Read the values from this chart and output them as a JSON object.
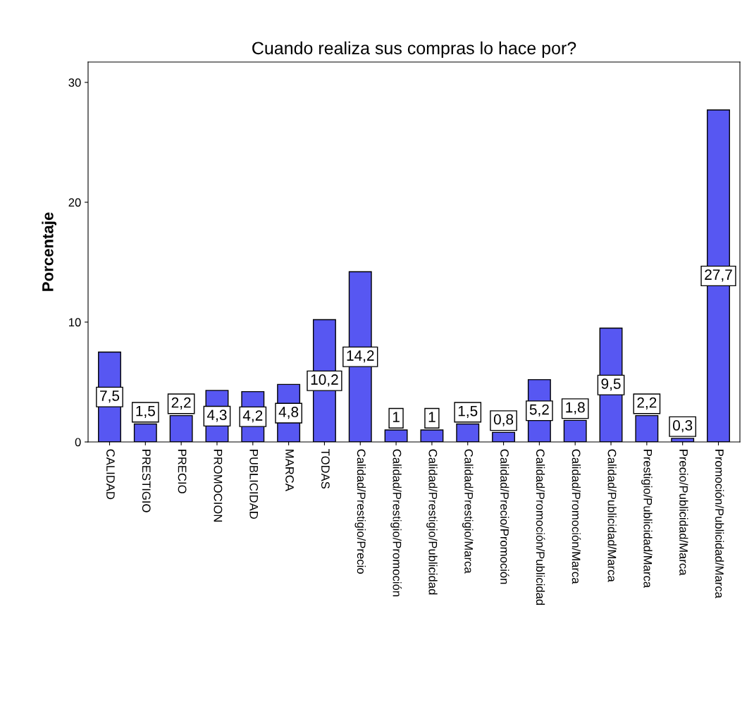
{
  "chart_data": {
    "type": "bar",
    "title": "Cuando realiza sus compras lo hace por?",
    "ylabel": "Porcentaje",
    "categories": [
      "CALIDAD",
      "PRESTIGIO",
      "PRECIO",
      "PROMOCION",
      "PUBLICIDAD",
      "MARCA",
      "TODAS",
      "Calidad/Prestigio/Precio",
      "Calidad/Prestigio/Promoción",
      "Calidad/Prestigio/Publicidad",
      "Calidad/Prestigio/Marca",
      "Calidad/Precio/Promoción",
      "Calidad/Promoción/Publicidad",
      "Calidad/Promoción/Marca",
      "Calidad/Publicidad/Marca",
      "Prestigio/Publicidad/Marca",
      "Precio/Publicidad/Marca",
      "Promoción/Publicidad/Marca"
    ],
    "values": [
      7.5,
      1.5,
      2.2,
      4.3,
      4.2,
      4.8,
      10.2,
      14.2,
      1,
      1,
      1.5,
      0.8,
      5.2,
      1.8,
      9.5,
      2.2,
      0.3,
      27.7
    ],
    "value_labels": [
      "7,5",
      "1,5",
      "2,2",
      "4,3",
      "4,2",
      "4,8",
      "10,2",
      "14,2",
      "1",
      "1",
      "1,5",
      "0,8",
      "5,2",
      "1,8",
      "9,5",
      "2,2",
      "0,3",
      "27,7"
    ],
    "color": "#5757f2",
    "ylim": [
      0,
      31.7
    ],
    "yticks": [
      0,
      10,
      20,
      30
    ],
    "grid": false,
    "legend": false
  }
}
